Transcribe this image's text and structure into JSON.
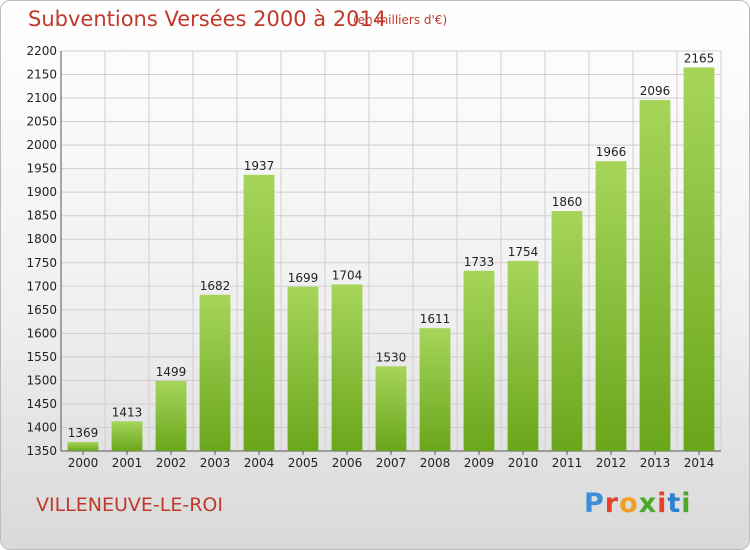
{
  "page": {
    "title": "Subventions Versées 2000 à 2014",
    "subtitle": "(en milliers d'€)",
    "commune": "VILLENEUVE-LE-ROI",
    "logo": "Proxiti"
  },
  "colors": {
    "title": "#c0392b",
    "bar_light": "#a6d55a",
    "bar_dark": "#6aa61c",
    "grid": "#cfcfcf"
  },
  "chart_data": {
    "type": "bar",
    "title": "Subventions Versées 2000 à 2014",
    "subtitle": "(en milliers d'€)",
    "categories": [
      "2000",
      "2001",
      "2002",
      "2003",
      "2004",
      "2005",
      "2006",
      "2007",
      "2008",
      "2009",
      "2010",
      "2011",
      "2012",
      "2013",
      "2014"
    ],
    "values": [
      1369,
      1413,
      1499,
      1682,
      1937,
      1699,
      1704,
      1530,
      1611,
      1733,
      1754,
      1860,
      1966,
      2096,
      2165
    ],
    "ylim": [
      1350,
      2200
    ],
    "yticks": [
      1350,
      1400,
      1450,
      1500,
      1550,
      1600,
      1650,
      1700,
      1750,
      1800,
      1850,
      1900,
      1950,
      2000,
      2050,
      2100,
      2150,
      2200
    ],
    "grid": true,
    "legend": "none"
  }
}
